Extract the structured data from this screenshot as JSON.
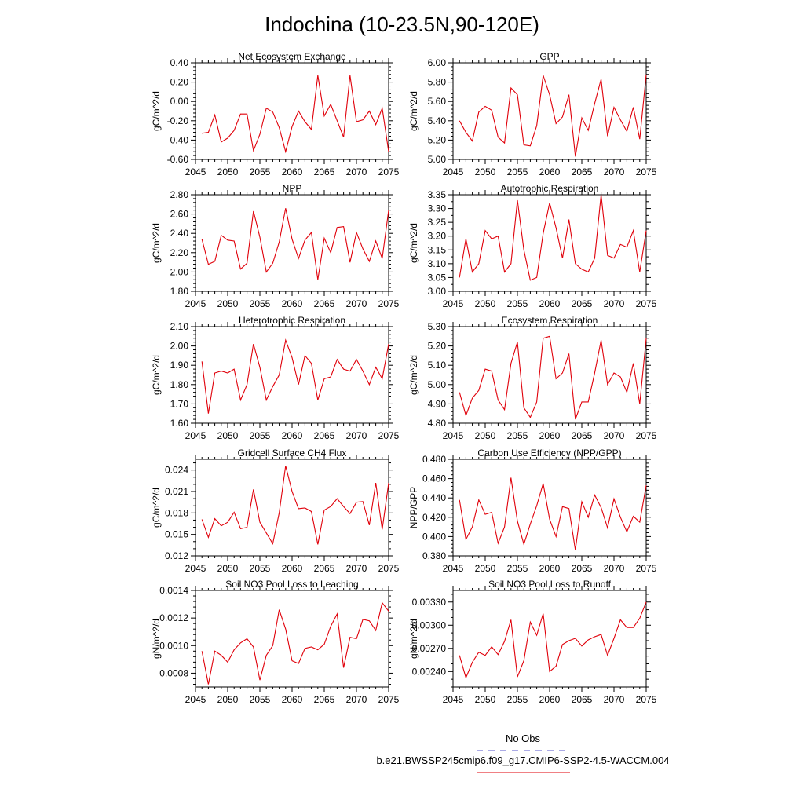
{
  "title": "Indochina (10-23.5N,90-120E)",
  "legend": {
    "obs_label": "No Obs",
    "obs_color": "#5555cc",
    "model_label": "b.e21.BWSSP245cmip6.f09_g17.CMIP6-SSP2-4.5-WACCM.004",
    "model_color": "#e0000a"
  },
  "line_color": "#e0000a",
  "x": [
    2046,
    2047,
    2048,
    2049,
    2050,
    2051,
    2052,
    2053,
    2054,
    2055,
    2056,
    2057,
    2058,
    2059,
    2060,
    2061,
    2062,
    2063,
    2064,
    2065,
    2066,
    2067,
    2068,
    2069,
    2070,
    2071,
    2072,
    2073,
    2074,
    2075
  ],
  "xlim": [
    2045,
    2075
  ],
  "xticks": [
    2045,
    2050,
    2055,
    2060,
    2065,
    2070,
    2075
  ],
  "chart_data": [
    {
      "type": "line",
      "title": "Net Ecosystem Exchange",
      "ylabel": "gC/m^2/d",
      "ylim": [
        -0.6,
        0.4
      ],
      "yticks": [
        "-0.60",
        "-0.40",
        "-0.20",
        "0.00",
        "0.20",
        "0.40"
      ],
      "yminor": 5,
      "values": [
        -0.33,
        -0.32,
        -0.14,
        -0.42,
        -0.38,
        -0.3,
        -0.13,
        -0.13,
        -0.51,
        -0.34,
        -0.07,
        -0.11,
        -0.27,
        -0.52,
        -0.26,
        -0.1,
        -0.21,
        -0.29,
        0.27,
        -0.15,
        -0.03,
        -0.2,
        -0.37,
        0.27,
        -0.21,
        -0.19,
        -0.1,
        -0.24,
        -0.07,
        -0.52
      ]
    },
    {
      "type": "line",
      "title": "GPP",
      "ylabel": "gC/m^2/d",
      "ylim": [
        5.0,
        6.0
      ],
      "yticks": [
        "5.00",
        "5.20",
        "5.40",
        "5.60",
        "5.80",
        "6.00"
      ],
      "yminor": 5,
      "values": [
        5.4,
        5.28,
        5.19,
        5.49,
        5.55,
        5.51,
        5.23,
        5.17,
        5.74,
        5.67,
        5.15,
        5.14,
        5.35,
        5.87,
        5.67,
        5.37,
        5.44,
        5.67,
        5.03,
        5.43,
        5.3,
        5.58,
        5.83,
        5.24,
        5.54,
        5.41,
        5.29,
        5.54,
        5.21,
        5.88
      ]
    },
    {
      "type": "line",
      "title": "NPP",
      "ylabel": "gC/m^2/d",
      "ylim": [
        1.8,
        2.8
      ],
      "yticks": [
        "1.80",
        "2.00",
        "2.20",
        "2.40",
        "2.60",
        "2.80"
      ],
      "yminor": 5,
      "values": [
        2.34,
        2.08,
        2.11,
        2.38,
        2.33,
        2.32,
        2.03,
        2.09,
        2.63,
        2.36,
        2.0,
        2.09,
        2.31,
        2.66,
        2.34,
        2.14,
        2.33,
        2.41,
        1.92,
        2.35,
        2.2,
        2.46,
        2.47,
        2.1,
        2.41,
        2.24,
        2.11,
        2.32,
        2.14,
        2.64
      ]
    },
    {
      "type": "line",
      "title": "Autotrophic Respiration",
      "ylabel": "gC/m^2/d",
      "ylim": [
        3.0,
        3.35
      ],
      "yticks": [
        "3.00",
        "3.05",
        "3.10",
        "3.15",
        "3.20",
        "3.25",
        "3.30",
        "3.35"
      ],
      "yminor": 2,
      "values": [
        3.05,
        3.19,
        3.07,
        3.1,
        3.22,
        3.19,
        3.2,
        3.07,
        3.1,
        3.33,
        3.15,
        3.04,
        3.05,
        3.21,
        3.32,
        3.23,
        3.12,
        3.26,
        3.1,
        3.08,
        3.07,
        3.12,
        3.35,
        3.13,
        3.12,
        3.17,
        3.16,
        3.22,
        3.07,
        3.22
      ]
    },
    {
      "type": "line",
      "title": "Heterotrophic Respiration",
      "ylabel": "gC/m^2/d",
      "ylim": [
        1.6,
        2.1
      ],
      "yticks": [
        "1.60",
        "1.70",
        "1.80",
        "1.90",
        "2.00",
        "2.10"
      ],
      "yminor": 5,
      "values": [
        1.92,
        1.65,
        1.86,
        1.87,
        1.86,
        1.88,
        1.72,
        1.8,
        2.01,
        1.89,
        1.72,
        1.79,
        1.85,
        2.03,
        1.94,
        1.8,
        1.95,
        1.91,
        1.72,
        1.83,
        1.84,
        1.93,
        1.88,
        1.87,
        1.93,
        1.87,
        1.8,
        1.89,
        1.83,
        2.01
      ]
    },
    {
      "type": "line",
      "title": "Ecosystem Respiration",
      "ylabel": "gC/m^2/d",
      "ylim": [
        4.8,
        5.3
      ],
      "yticks": [
        "4.80",
        "4.90",
        "5.00",
        "5.10",
        "5.20",
        "5.30"
      ],
      "yminor": 5,
      "values": [
        4.96,
        4.84,
        4.93,
        4.97,
        5.08,
        5.07,
        4.92,
        4.87,
        5.11,
        5.22,
        4.88,
        4.83,
        4.91,
        5.24,
        5.25,
        5.03,
        5.06,
        5.16,
        4.82,
        4.91,
        4.91,
        5.06,
        5.23,
        5.0,
        5.06,
        5.04,
        4.96,
        5.11,
        4.9,
        5.24
      ]
    },
    {
      "type": "line",
      "title": "Gridcell Surface CH4 Flux",
      "ylabel": "gC/m^2/d",
      "ylim": [
        0.012,
        0.0255
      ],
      "yticks": [
        "0.012",
        "0.015",
        "0.018",
        "0.021",
        "0.024"
      ],
      "ytick_values": [
        0.012,
        0.015,
        0.018,
        0.021,
        0.024
      ],
      "yminor": 3,
      "values": [
        0.0171,
        0.0146,
        0.0172,
        0.0162,
        0.0167,
        0.0181,
        0.0158,
        0.016,
        0.0213,
        0.0167,
        0.0152,
        0.0137,
        0.018,
        0.0246,
        0.021,
        0.0186,
        0.0187,
        0.0182,
        0.0136,
        0.0184,
        0.0189,
        0.02,
        0.0189,
        0.0179,
        0.0195,
        0.0196,
        0.0163,
        0.0222,
        0.0157,
        0.0222
      ]
    },
    {
      "type": "line",
      "title": "Carbon Use Efficiency (NPP/GPP)",
      "ylabel": "NPP/GPP",
      "ylim": [
        0.38,
        0.48
      ],
      "yticks": [
        "0.380",
        "0.400",
        "0.420",
        "0.440",
        "0.460",
        "0.480"
      ],
      "yminor": 5,
      "values": [
        0.438,
        0.397,
        0.41,
        0.438,
        0.423,
        0.425,
        0.393,
        0.41,
        0.461,
        0.416,
        0.392,
        0.413,
        0.432,
        0.455,
        0.418,
        0.4,
        0.431,
        0.429,
        0.386,
        0.436,
        0.42,
        0.443,
        0.43,
        0.409,
        0.439,
        0.42,
        0.405,
        0.421,
        0.415,
        0.453
      ]
    },
    {
      "type": "line",
      "title": "Soil NO3 Pool Loss to Leaching",
      "ylabel": "gN/m^2/d",
      "ylim": [
        0.0007,
        0.0014
      ],
      "yticks": [
        "0.0008",
        "0.0010",
        "0.0012",
        "0.0014"
      ],
      "ytick_values": [
        0.0008,
        0.001,
        0.0012,
        0.0014
      ],
      "yminor": 5,
      "values": [
        0.00096,
        0.00072,
        0.00096,
        0.00093,
        0.00088,
        0.00097,
        0.00102,
        0.00105,
        0.00099,
        0.00075,
        0.00093,
        0.001,
        0.00126,
        0.00112,
        0.00089,
        0.00087,
        0.00098,
        0.00099,
        0.00097,
        0.00101,
        0.00114,
        0.00123,
        0.00084,
        0.00106,
        0.00105,
        0.00119,
        0.00118,
        0.00111,
        0.00131,
        0.00125
      ]
    },
    {
      "type": "line",
      "title": "Soil NO3 Pool Loss to Runoff",
      "ylabel": "gN/m^2/d",
      "ylim": [
        0.0022,
        0.00345
      ],
      "yticks": [
        "0.00240",
        "0.00270",
        "0.00300",
        "0.00330"
      ],
      "ytick_values": [
        0.0024,
        0.0027,
        0.003,
        0.0033
      ],
      "yminor": 3,
      "values": [
        0.00261,
        0.00232,
        0.00252,
        0.00265,
        0.00261,
        0.00272,
        0.00262,
        0.00279,
        0.00307,
        0.00233,
        0.00254,
        0.00304,
        0.00287,
        0.00315,
        0.0024,
        0.00247,
        0.00275,
        0.0028,
        0.00283,
        0.00273,
        0.00281,
        0.00285,
        0.00288,
        0.00261,
        0.00283,
        0.00307,
        0.00297,
        0.00297,
        0.00309,
        0.0033
      ]
    }
  ]
}
